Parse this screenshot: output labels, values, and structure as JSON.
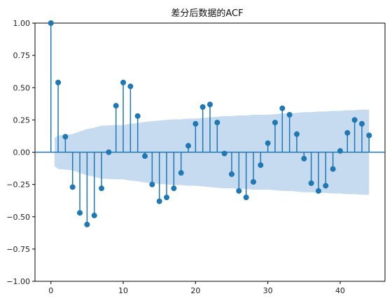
{
  "chart_data": {
    "type": "stem",
    "title": "差分后数据的ACF",
    "xlabel": "",
    "ylabel": "",
    "xlim": [
      -2.2,
      46.2
    ],
    "ylim": [
      -1.0,
      1.0
    ],
    "x_ticks": [
      0,
      10,
      20,
      30,
      40
    ],
    "y_ticks": [
      -1.0,
      -0.75,
      -0.5,
      -0.25,
      0.0,
      0.25,
      0.5,
      0.75,
      1.0
    ],
    "x_tick_labels": [
      "0",
      "10",
      "20",
      "30",
      "40"
    ],
    "y_tick_labels": [
      "−1.00",
      "−0.75",
      "−0.50",
      "−0.25",
      "0.00",
      "0.25",
      "0.50",
      "0.75",
      "1.00"
    ],
    "grid": false,
    "colors": {
      "stem": "#1f77b4",
      "marker": "#1f77b4",
      "baseline": "#1f77b4",
      "confidence_band": "#c6dbef",
      "axis": "#000000"
    },
    "lags": [
      0,
      1,
      2,
      3,
      4,
      5,
      6,
      7,
      8,
      9,
      10,
      11,
      12,
      13,
      14,
      15,
      16,
      17,
      18,
      19,
      20,
      21,
      22,
      23,
      24,
      25,
      26,
      27,
      28,
      29,
      30,
      31,
      32,
      33,
      34,
      35,
      36,
      37,
      38,
      39,
      40,
      41,
      42,
      43,
      44
    ],
    "acf": [
      1.0,
      0.54,
      0.12,
      -0.27,
      -0.47,
      -0.56,
      -0.49,
      -0.28,
      0.0,
      0.36,
      0.54,
      0.51,
      0.28,
      -0.03,
      -0.25,
      -0.38,
      -0.35,
      -0.28,
      -0.16,
      0.05,
      0.22,
      0.35,
      0.37,
      0.23,
      -0.01,
      -0.17,
      -0.3,
      -0.35,
      -0.23,
      -0.1,
      0.07,
      0.23,
      0.34,
      0.29,
      0.14,
      -0.05,
      -0.24,
      -0.3,
      -0.26,
      -0.13,
      0.01,
      0.15,
      0.25,
      0.22,
      0.13
    ],
    "confidence_band": {
      "x": [
        0.5,
        1,
        2,
        3,
        4,
        5,
        6,
        7,
        8,
        9,
        10,
        11,
        12,
        13,
        14,
        15,
        16,
        17,
        18,
        19,
        20,
        21,
        22,
        23,
        24,
        25,
        26,
        27,
        28,
        29,
        30,
        31,
        32,
        33,
        34,
        35,
        36,
        37,
        38,
        39,
        40,
        41,
        42,
        43,
        44
      ],
      "upper": [
        0.11,
        0.13,
        0.135,
        0.14,
        0.16,
        0.18,
        0.19,
        0.205,
        0.207,
        0.21,
        0.21,
        0.22,
        0.225,
        0.235,
        0.24,
        0.245,
        0.25,
        0.255,
        0.255,
        0.26,
        0.26,
        0.265,
        0.27,
        0.275,
        0.28,
        0.28,
        0.285,
        0.285,
        0.29,
        0.29,
        0.29,
        0.295,
        0.3,
        0.3,
        0.305,
        0.31,
        0.31,
        0.315,
        0.315,
        0.32,
        0.32,
        0.325,
        0.325,
        0.33,
        0.33
      ]
    }
  }
}
